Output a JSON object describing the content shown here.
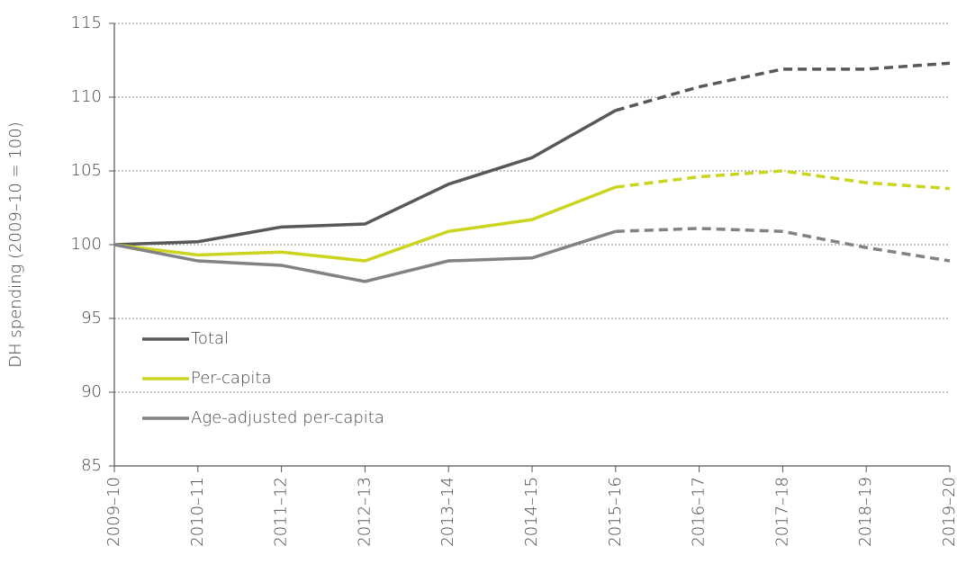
{
  "chart_data": {
    "type": "line",
    "y_label": "DH spending (2009–10 = 100)",
    "categories": [
      "2009–10",
      "2010–11",
      "2011–12",
      "2012–13",
      "2013–14",
      "2014–15",
      "2015–16",
      "2016–17",
      "2017–18",
      "2018–19",
      "2019–20"
    ],
    "dashed_after": "2015–16",
    "series": [
      {
        "name": "Total",
        "color": "#58585a",
        "values": [
          100,
          100.2,
          101.2,
          101.4,
          104.1,
          105.9,
          109.1,
          110.7,
          111.9,
          111.9,
          112.3
        ]
      },
      {
        "name": "Per-capita",
        "color": "#cbd51f",
        "values": [
          100,
          99.3,
          99.5,
          98.9,
          100.9,
          101.7,
          103.9,
          104.6,
          105.0,
          104.2,
          103.8
        ]
      },
      {
        "name": "Age-adjusted per-capita",
        "color": "#818285",
        "values": [
          100,
          98.9,
          98.6,
          97.5,
          98.9,
          99.1,
          100.9,
          101.1,
          100.9,
          99.8,
          98.9
        ]
      }
    ],
    "ylim": [
      85,
      115
    ],
    "yticks": [
      85,
      90,
      95,
      100,
      105,
      110,
      115
    ],
    "grid": true,
    "legend": "left"
  }
}
